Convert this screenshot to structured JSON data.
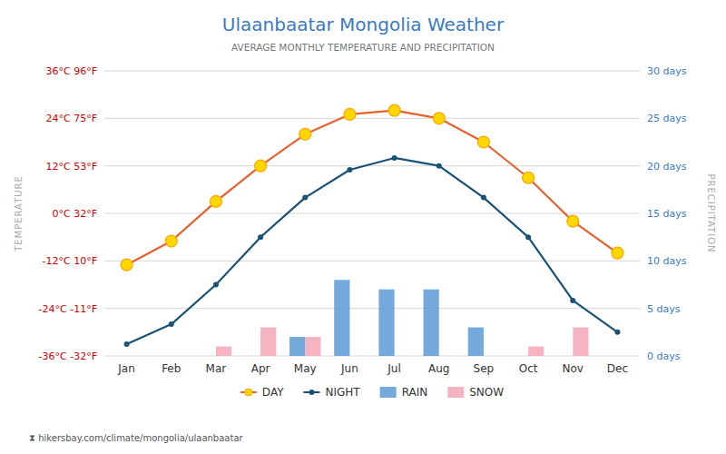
{
  "chart_data": {
    "type": "bar",
    "title": "Ulaanbaatar Mongolia Weather",
    "subtitle": "AVERAGE MONTHLY TEMPERATURE AND PRECIPITATION",
    "y_label": "TEMPERATURE",
    "y2_label": "PRECIPITATION",
    "annotations": [
      "⧗ hikersbay.com/climate/mongolia/ulaanbaatar"
    ],
    "categories": [
      "Jan",
      "Feb",
      "Mar",
      "Apr",
      "May",
      "Jun",
      "Jul",
      "Aug",
      "Sep",
      "Oct",
      "Nov",
      "Dec"
    ],
    "series": [
      {
        "name": "DAY",
        "type": "line",
        "color": "#e8602c",
        "marker": "circle",
        "values": [
          -13,
          -7,
          3,
          12,
          20,
          25,
          26,
          24,
          18,
          9,
          -2,
          -10
        ]
      },
      {
        "name": "NIGHT",
        "type": "line",
        "color": "#1a5276",
        "marker": "circle",
        "values": [
          -33,
          -28,
          -18,
          -6,
          4,
          11,
          14,
          12,
          4,
          -6,
          -22,
          -30
        ]
      },
      {
        "name": "RAIN",
        "type": "bar",
        "axis": "y2",
        "color": "#5b9bd5",
        "values": [
          0,
          0,
          0,
          0,
          2,
          8,
          7,
          7,
          3,
          0,
          0,
          0
        ]
      },
      {
        "name": "SNOW",
        "type": "bar",
        "axis": "y2",
        "color": "#f4a7b9",
        "values": [
          0,
          0,
          1,
          3,
          2,
          0,
          0,
          0,
          0,
          1,
          3,
          0
        ]
      }
    ],
    "ylim": [
      -36,
      36
    ],
    "yticks": [
      {
        "value": -36,
        "label": "-36°C -32°F"
      },
      {
        "value": -24,
        "label": "-24°C -11°F"
      },
      {
        "value": -12,
        "label": "-12°C 10°F"
      },
      {
        "value": 0,
        "label": "0°C 32°F"
      },
      {
        "value": 12,
        "label": "12°C 53°F"
      },
      {
        "value": 24,
        "label": "24°C 75°F"
      },
      {
        "value": 36,
        "label": "36°C 96°F"
      }
    ],
    "y2lim": [
      0,
      30
    ],
    "y2ticks": [
      {
        "value": 0,
        "label": "0 days"
      },
      {
        "value": 5,
        "label": "5 days"
      },
      {
        "value": 10,
        "label": "10 days"
      },
      {
        "value": 15,
        "label": "15 days"
      },
      {
        "value": 20,
        "label": "20 days"
      },
      {
        "value": 25,
        "label": "25 days"
      },
      {
        "value": 30,
        "label": "30 days"
      }
    ],
    "grid": true,
    "legend": "bottom"
  }
}
